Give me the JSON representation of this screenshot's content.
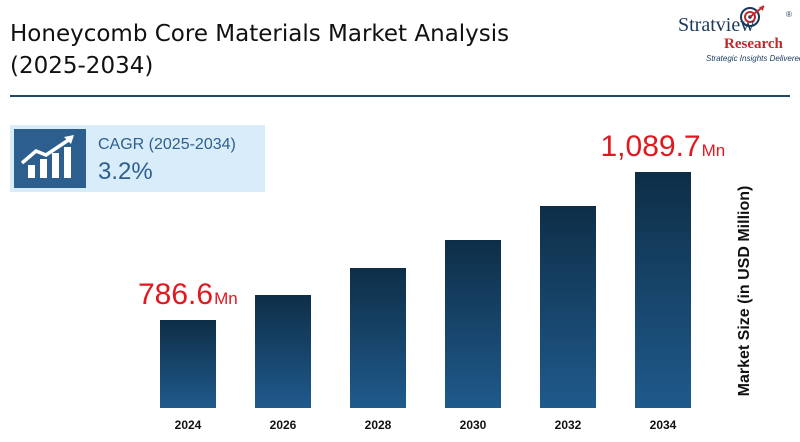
{
  "header": {
    "title_line1": "Honeycomb Core Materials Market Analysis",
    "title_line2": "(2025-2034)"
  },
  "logo": {
    "brand": "Stratview",
    "registered": "®",
    "research": "Research",
    "tagline": "Strategic Insights Delivered",
    "icon": "target-globe-icon"
  },
  "cagr": {
    "icon": "growth-chart-icon",
    "label": "CAGR (2025-2034)",
    "value": "3.2%"
  },
  "colors": {
    "bar_top": "#0e2e47",
    "bar_bottom": "#1f5a8c",
    "highlight": "#e0191f",
    "accent": "#2d5f8e"
  },
  "chart_data": {
    "type": "bar",
    "categories": [
      "2024",
      "2026",
      "2028",
      "2030",
      "2032",
      "2034"
    ],
    "values": [
      786.6,
      838,
      893,
      951,
      1020,
      1089.7
    ],
    "ylabel": "Market Size (in USD Million)",
    "grid": false,
    "legend": "none",
    "annotations": [
      {
        "category": "2024",
        "value": "786.6",
        "unit": "Mn"
      },
      {
        "category": "2034",
        "value": "1,089.7",
        "unit": "Mn"
      }
    ]
  }
}
